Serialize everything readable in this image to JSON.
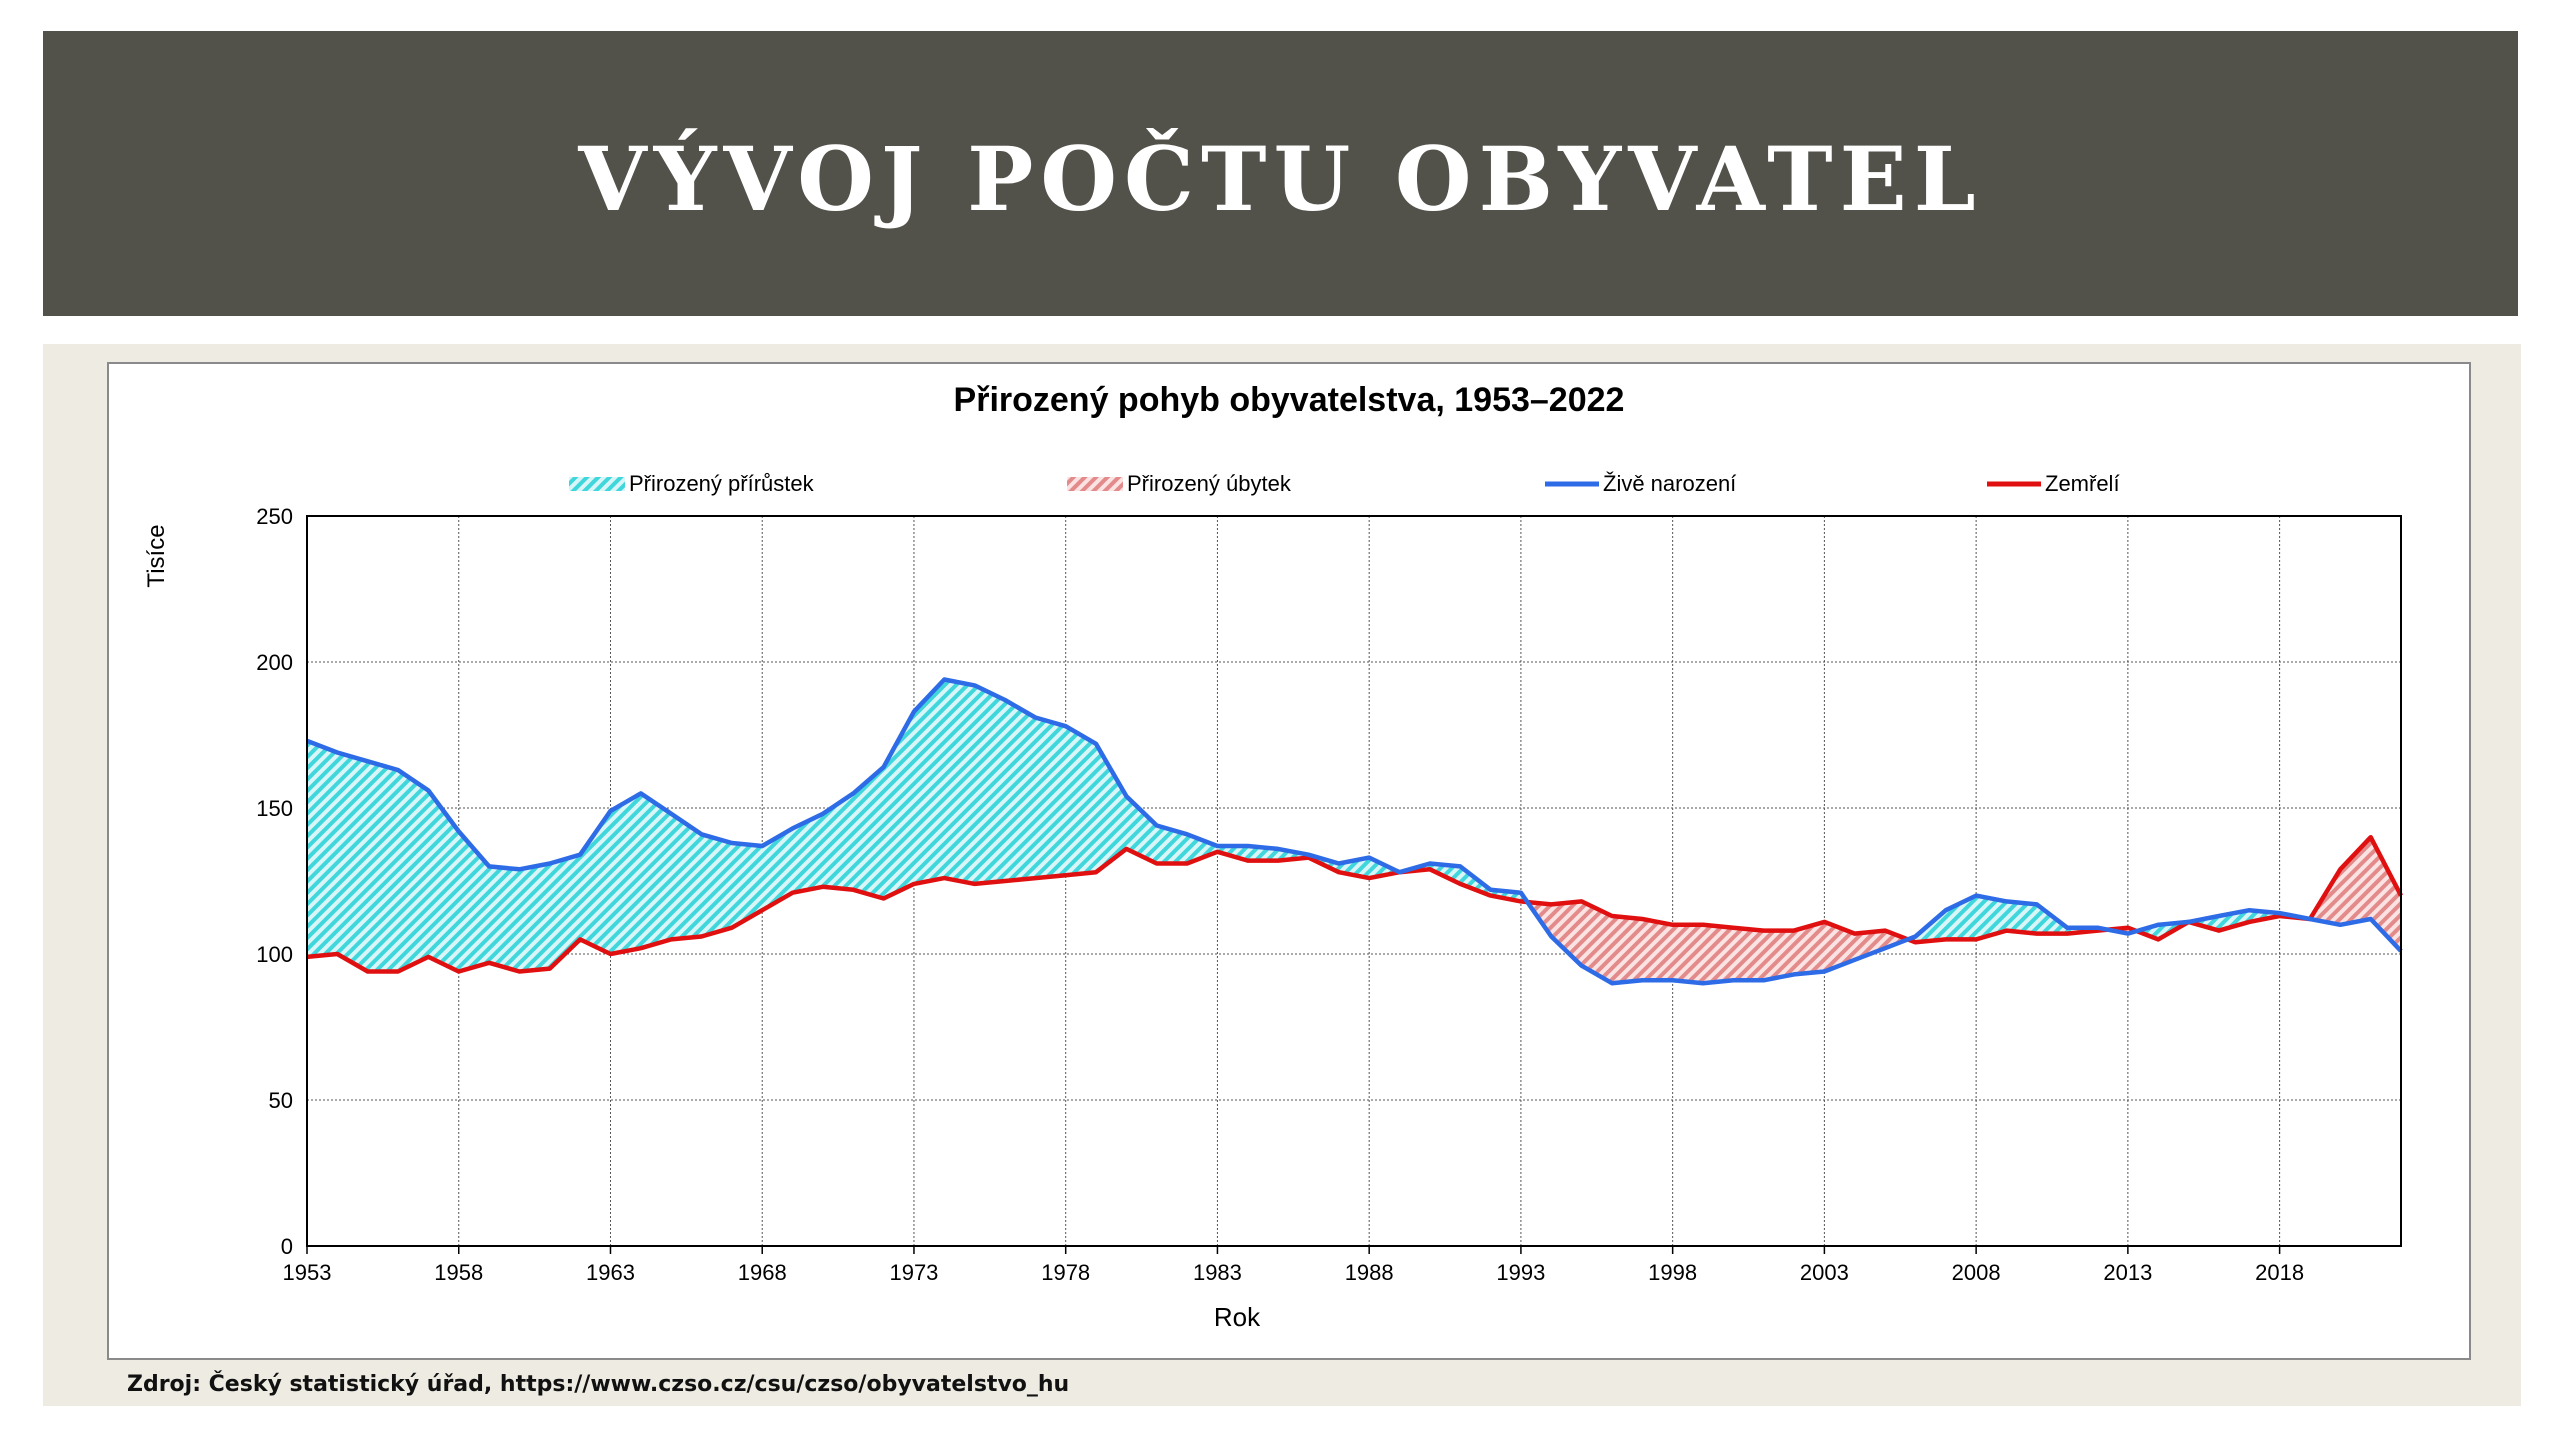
{
  "slide": {
    "title": "VÝVOJ POČTU OBYVATEL",
    "source": "Zdroj: Český statistický úřad, https://www.czso.cz/csu/czso/obyvatelstvo_hu"
  },
  "colors": {
    "banner": "#52514a",
    "content_bg": "#edebe2",
    "births": "#2e6be6",
    "deaths": "#e01010",
    "increase_fill": "#3fd6dc",
    "decrease_fill": "#e38a8a"
  },
  "chart_data": {
    "type": "line",
    "title": "Přirozený pohyb obyvatelstva, 1953–2022",
    "xlabel": "Rok",
    "ylabel": "Tisíce",
    "ylim": [
      0,
      250
    ],
    "yticks": [
      0,
      50,
      100,
      150,
      200,
      250
    ],
    "xticks": [
      1953,
      1958,
      1963,
      1968,
      1973,
      1978,
      1983,
      1988,
      1993,
      1998,
      2003,
      2008,
      2013,
      2018
    ],
    "grid": true,
    "legend_position": "top",
    "legend": {
      "increase": "Přirozený přírůstek",
      "decrease": "Přirozený úbytek",
      "births": "Živě narození",
      "deaths": "Zemřelí"
    },
    "x": [
      1953,
      1954,
      1955,
      1956,
      1957,
      1958,
      1959,
      1960,
      1961,
      1962,
      1963,
      1964,
      1965,
      1966,
      1967,
      1968,
      1969,
      1970,
      1971,
      1972,
      1973,
      1974,
      1975,
      1976,
      1977,
      1978,
      1979,
      1980,
      1981,
      1982,
      1983,
      1984,
      1985,
      1986,
      1987,
      1988,
      1989,
      1990,
      1991,
      1992,
      1993,
      1994,
      1995,
      1996,
      1997,
      1998,
      1999,
      2000,
      2001,
      2002,
      2003,
      2004,
      2005,
      2006,
      2007,
      2008,
      2009,
      2010,
      2011,
      2012,
      2013,
      2014,
      2015,
      2016,
      2017,
      2018,
      2019,
      2020,
      2021,
      2022
    ],
    "series": [
      {
        "name": "Živě narození",
        "values": [
          173,
          169,
          166,
          163,
          156,
          142,
          130,
          129,
          131,
          134,
          149,
          155,
          148,
          141,
          138,
          137,
          143,
          148,
          155,
          164,
          183,
          194,
          192,
          187,
          181,
          178,
          172,
          154,
          144,
          141,
          137,
          137,
          136,
          134,
          131,
          133,
          128,
          131,
          130,
          122,
          121,
          106,
          96,
          90,
          91,
          91,
          90,
          91,
          91,
          93,
          94,
          98,
          102,
          106,
          115,
          120,
          118,
          117,
          109,
          109,
          107,
          110,
          111,
          113,
          115,
          114,
          112,
          110,
          112,
          101
        ],
        "color": "#2e6be6"
      },
      {
        "name": "Zemřelí",
        "values": [
          99,
          100,
          94,
          94,
          99,
          94,
          97,
          94,
          95,
          105,
          100,
          102,
          105,
          106,
          109,
          115,
          121,
          123,
          122,
          119,
          124,
          126,
          124,
          125,
          126,
          127,
          128,
          136,
          131,
          131,
          135,
          132,
          132,
          133,
          128,
          126,
          128,
          129,
          124,
          120,
          118,
          117,
          118,
          113,
          112,
          110,
          110,
          109,
          108,
          108,
          111,
          107,
          108,
          104,
          105,
          105,
          108,
          107,
          107,
          108,
          109,
          105,
          111,
          108,
          111,
          113,
          112,
          129,
          140,
          120
        ],
        "color": "#e01010"
      }
    ]
  }
}
